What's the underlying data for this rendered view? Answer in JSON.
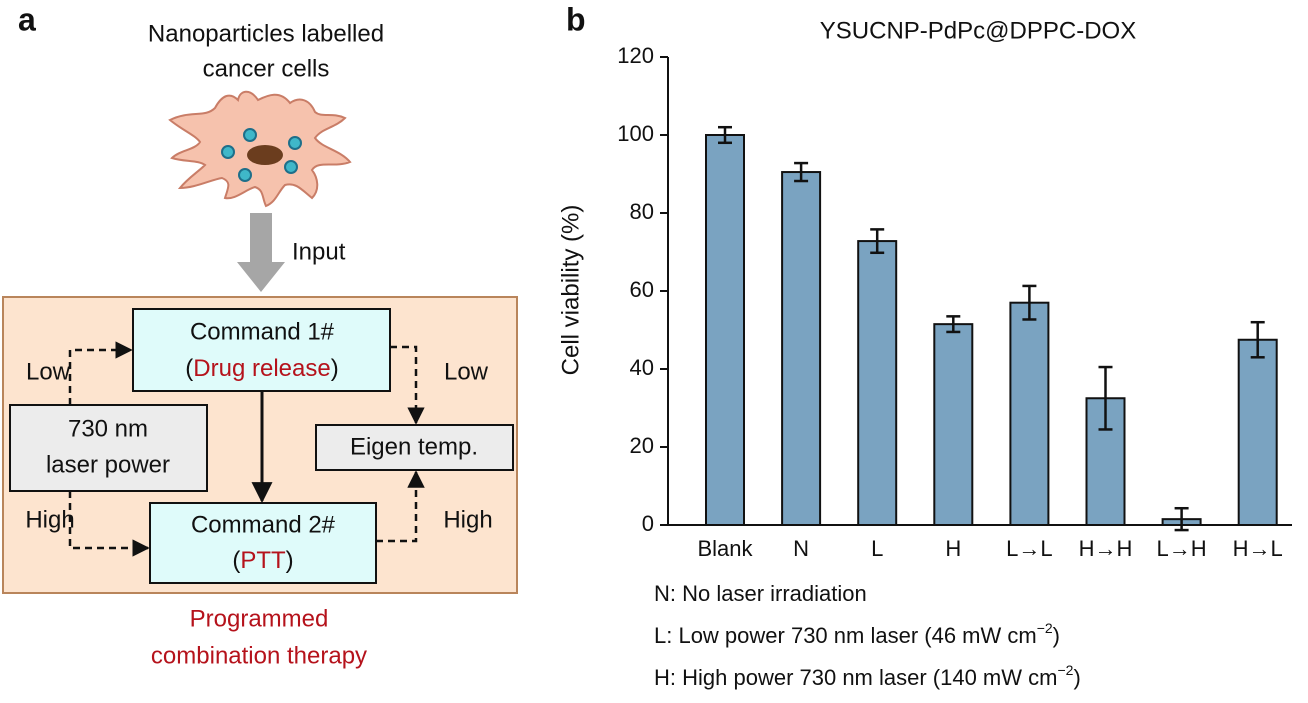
{
  "panel_labels": [
    "a",
    "b"
  ],
  "diagram": {
    "cell_caption": [
      "Nanoparticles labelled",
      "cancer cells"
    ],
    "input_label": "Input",
    "command1": {
      "title": "Command 1#",
      "detail": [
        "(",
        "Drug release",
        ")"
      ]
    },
    "command2": {
      "title": "Command 2#",
      "detail": [
        "(",
        "PTT",
        ")"
      ]
    },
    "laser_box": [
      "730 nm",
      "laser power"
    ],
    "eigen_box": "Eigen temp.",
    "edge_labels": {
      "left_low": "Low",
      "left_high": "High",
      "right_low": "Low",
      "right_high": "High"
    },
    "footer": [
      "Programmed",
      "combination therapy"
    ]
  },
  "chart_data": {
    "type": "bar",
    "title": "YSUCNP-PdPc@DPPC-DOX",
    "y_label": "Cell viability (%)",
    "categories": [
      "Blank",
      "N",
      "L",
      "H",
      "L→L",
      "H→H",
      "L→H",
      "H→L"
    ],
    "values": [
      100,
      90.5,
      72.8,
      51.5,
      57,
      32.5,
      1.5,
      47.5
    ],
    "errors": [
      2,
      2.3,
      3,
      2,
      4.3,
      8,
      2.8,
      4.5
    ],
    "color": "#7aa3c1",
    "ylim": [
      0,
      120
    ],
    "yticks": [
      0,
      20,
      40,
      60,
      80,
      100,
      120
    ],
    "grid": false,
    "notes": [
      [
        "N: No laser irradiation"
      ],
      [
        "L: Low power 730 nm laser (46 mW cm",
        "−2",
        ")"
      ],
      [
        "H: High power 730 nm laser (140 mW cm",
        "−2",
        ")"
      ]
    ]
  }
}
